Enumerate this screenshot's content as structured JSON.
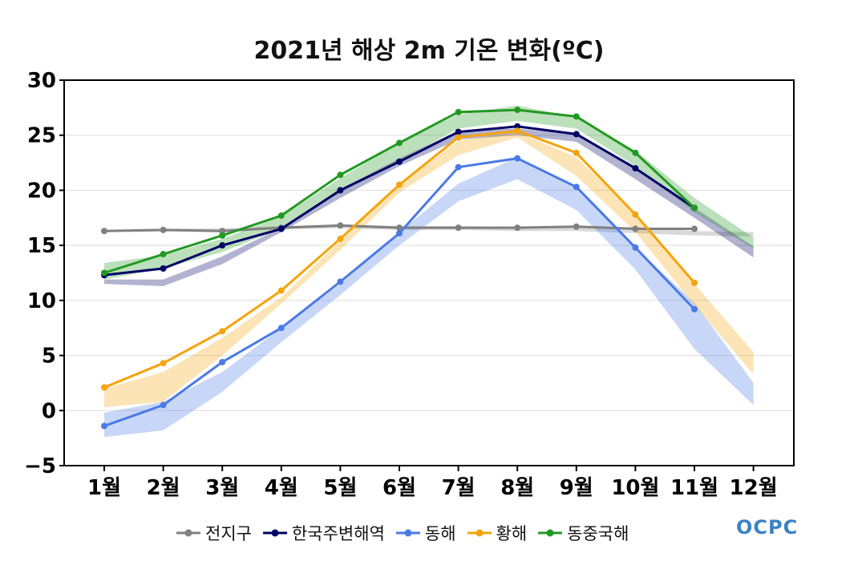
{
  "chart_data": {
    "type": "line",
    "title": "2021년 해상 2m 기온 변화(ºC)",
    "xlabel": "",
    "ylabel": "",
    "categories": [
      "1월",
      "2월",
      "3월",
      "4월",
      "5월",
      "6월",
      "7월",
      "8월",
      "9월",
      "10월",
      "11월",
      "12월"
    ],
    "ylim": [
      -5,
      30
    ],
    "yticks": [
      "30",
      "25",
      "20",
      "15",
      "10",
      "5",
      "0",
      "−5"
    ],
    "grid": true,
    "legend_position": "bottom",
    "series": [
      {
        "name": "전지구",
        "color": "#808080",
        "values": [
          16.3,
          16.4,
          16.3,
          16.6,
          16.8,
          16.6,
          16.6,
          16.6,
          16.7,
          16.5,
          16.5,
          null
        ],
        "band_lower": [
          16.2,
          16.25,
          16.3,
          16.45,
          16.55,
          16.4,
          16.4,
          16.3,
          16.3,
          16.1,
          15.9,
          15.8
        ],
        "band_upper": [
          16.35,
          16.5,
          16.55,
          16.75,
          16.9,
          16.75,
          16.75,
          16.65,
          16.75,
          16.65,
          16.3,
          16.2
        ]
      },
      {
        "name": "한국주변해역",
        "color": "#000066",
        "values": [
          12.3,
          12.9,
          15.0,
          16.5,
          20.0,
          22.6,
          25.3,
          25.8,
          25.1,
          22.0,
          18.4,
          null
        ],
        "band_lower": [
          11.5,
          11.3,
          13.3,
          16.2,
          19.3,
          22.2,
          24.6,
          25.0,
          24.4,
          21.0,
          17.5,
          13.9
        ],
        "band_upper": [
          11.9,
          11.9,
          14.0,
          16.6,
          20.1,
          22.9,
          25.4,
          25.6,
          25.1,
          22.1,
          18.4,
          14.9
        ]
      },
      {
        "name": "동해",
        "color": "#4a7ae6",
        "values": [
          -1.4,
          0.5,
          4.4,
          7.5,
          11.7,
          16.1,
          22.1,
          22.9,
          20.3,
          14.8,
          9.2,
          null
        ],
        "band_lower": [
          -2.4,
          -1.8,
          1.7,
          6.2,
          10.5,
          15.0,
          19.0,
          21.0,
          18.2,
          12.8,
          5.6,
          0.5
        ],
        "band_upper": [
          -0.2,
          0.8,
          3.5,
          7.5,
          11.5,
          16.2,
          20.6,
          23.0,
          20.3,
          14.8,
          9.8,
          2.5
        ]
      },
      {
        "name": "황해",
        "color": "#f5a40c",
        "values": [
          2.1,
          4.3,
          7.2,
          10.9,
          15.6,
          20.5,
          24.8,
          25.4,
          23.4,
          17.8,
          11.6,
          null
        ],
        "band_lower": [
          0.3,
          0.8,
          5.0,
          9.7,
          14.6,
          19.8,
          23.2,
          24.8,
          21.3,
          16.2,
          9.6,
          3.3
        ],
        "band_upper": [
          2.0,
          3.5,
          6.6,
          10.3,
          15.4,
          20.5,
          24.5,
          25.3,
          23.0,
          17.9,
          11.5,
          5.3
        ]
      },
      {
        "name": "동중국해",
        "color": "#229922",
        "values": [
          12.5,
          14.2,
          15.9,
          17.7,
          21.4,
          24.3,
          27.1,
          27.3,
          26.7,
          23.4,
          18.4,
          null
        ],
        "band_lower": [
          11.9,
          12.9,
          14.4,
          16.5,
          19.8,
          22.7,
          25.6,
          26.3,
          25.6,
          22.2,
          18.0,
          14.7
        ],
        "band_upper": [
          13.4,
          14.1,
          15.6,
          17.6,
          21.1,
          24.3,
          26.9,
          27.7,
          26.6,
          23.6,
          19.3,
          15.7
        ]
      }
    ]
  },
  "logo_text": "OCPC"
}
